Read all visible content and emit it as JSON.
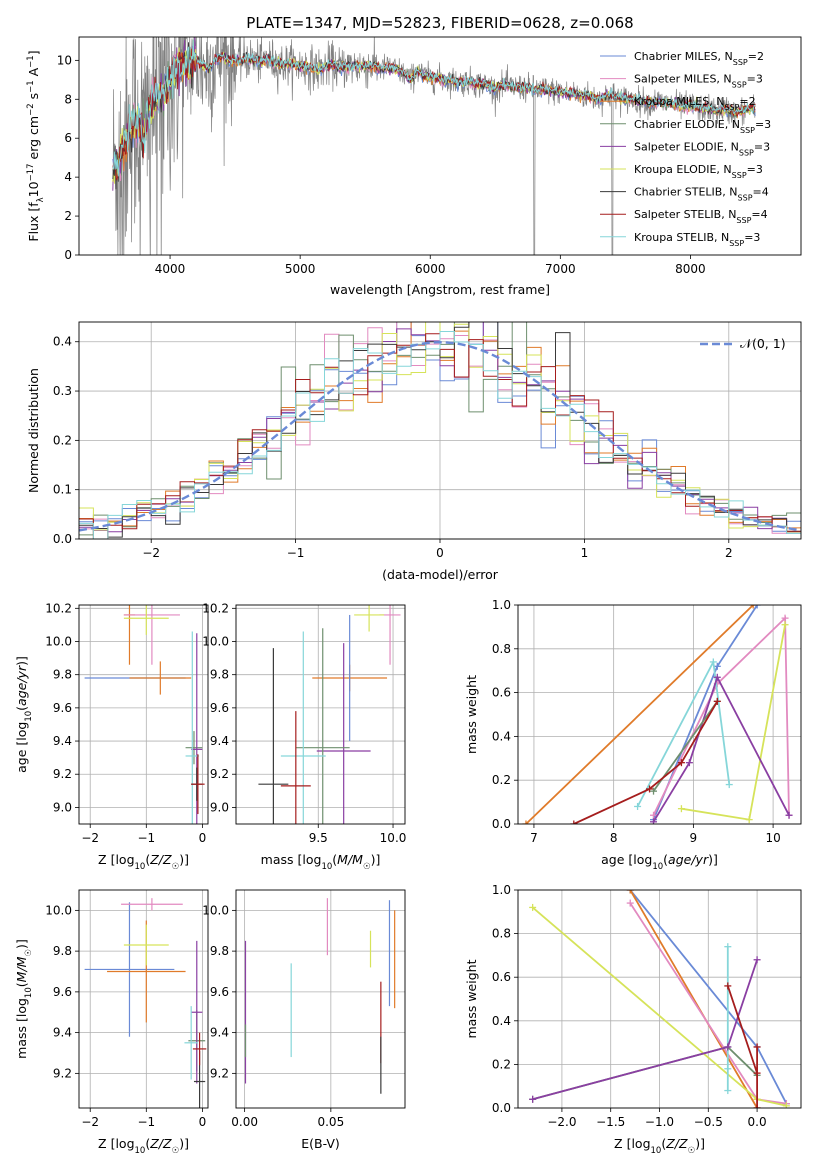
{
  "figure": {
    "title": "PLATE=1347, MJD=52823, FIBERID=0628, z=0.068"
  },
  "colors": {
    "c0": "#6a8ad6",
    "c1": "#e28ac0",
    "c2": "#e07b2a",
    "c3": "#6e8f6e",
    "c4": "#8a3fa2",
    "c5": "#d6e35a",
    "c6": "#3a3a3a",
    "c7": "#a51d1d",
    "c8": "#86d6d9",
    "data": "#808080",
    "grid": "#b0b0b0"
  },
  "chart_data": [
    {
      "id": "spectrum",
      "type": "line",
      "title": "PLATE=1347, MJD=52823, FIBERID=0628, z=0.068",
      "xlabel": "wavelength [Angstrom, rest frame]",
      "ylabel": "Flux [fλ10⁻¹⁷ erg cm⁻² s⁻¹ A⁻¹]",
      "xlim": [
        3300,
        8850
      ],
      "ylim": [
        0,
        11.2
      ],
      "xticks": [
        4000,
        5000,
        6000,
        7000,
        8000
      ],
      "yticks": [
        0,
        2,
        4,
        6,
        8,
        10
      ],
      "grid": false,
      "legend_placement": "right",
      "legend": [
        {
          "label": "Chabrier MILES, N",
          "sub": "SSP",
          "tail": "=2",
          "color": "c0"
        },
        {
          "label": "Salpeter MILES, N",
          "sub": "SSP",
          "tail": "=3",
          "color": "c1"
        },
        {
          "label": "Kroupa MILES, N",
          "sub": "SSP",
          "tail": "=2",
          "color": "c2"
        },
        {
          "label": "Chabrier ELODIE, N",
          "sub": "SSP",
          "tail": "=3",
          "color": "c3"
        },
        {
          "label": "Salpeter ELODIE, N",
          "sub": "SSP",
          "tail": "=3",
          "color": "c4"
        },
        {
          "label": "Kroupa ELODIE, N",
          "sub": "SSP",
          "tail": "=3",
          "color": "c5"
        },
        {
          "label": "Chabrier STELIB, N",
          "sub": "SSP",
          "tail": "=4",
          "color": "c6"
        },
        {
          "label": "Salpeter STELIB, N",
          "sub": "SSP",
          "tail": "=4",
          "color": "c7"
        },
        {
          "label": "Kroupa STELIB, N",
          "sub": "SSP",
          "tail": "=3",
          "color": "c8"
        }
      ],
      "x": [
        3560,
        3600,
        3650,
        3700,
        3750,
        3800,
        3850,
        3900,
        3950,
        4000,
        4050,
        4100,
        4150,
        4200,
        4250,
        4300,
        4350,
        4400,
        4450,
        4500,
        4550,
        4600,
        4650,
        4700,
        4750,
        4800,
        4850,
        4900,
        4950,
        5000,
        5050,
        5100,
        5150,
        5200,
        5250,
        5300,
        5350,
        5400,
        5450,
        5500,
        5550,
        5600,
        5650,
        5700,
        5750,
        5800,
        5850,
        5900,
        5950,
        6000,
        6050,
        6100,
        6150,
        6200,
        6250,
        6300,
        6350,
        6400,
        6450,
        6500,
        6550,
        6600,
        6650,
        6700,
        6750,
        6800,
        6850,
        6900,
        6950,
        7000,
        7050,
        7100,
        7150,
        7200,
        7250,
        7300,
        7350,
        7400,
        7450,
        7500,
        7550,
        7600,
        7650,
        7700,
        7750,
        7800,
        7850,
        7900,
        7950,
        8000,
        8050,
        8100,
        8150,
        8200,
        8250,
        8300,
        8350,
        8400,
        8450,
        8500
      ],
      "model": [
        4.3,
        4.6,
        5.8,
        6.6,
        6.9,
        6.2,
        7.6,
        8.0,
        8.4,
        9.0,
        9.6,
        9.8,
        9.9,
        10.0,
        9.7,
        9.6,
        10.1,
        10.2,
        10.0,
        10.0,
        10.0,
        10.1,
        10.0,
        9.9,
        10.1,
        9.9,
        9.8,
        9.8,
        9.8,
        9.7,
        9.7,
        9.6,
        9.5,
        9.7,
        9.8,
        9.6,
        9.7,
        9.7,
        9.7,
        9.7,
        9.7,
        9.6,
        9.6,
        9.6,
        9.5,
        9.3,
        9.0,
        9.5,
        9.2,
        9.1,
        9.1,
        9.0,
        9.0,
        8.9,
        8.9,
        8.9,
        8.8,
        8.8,
        8.7,
        8.5,
        8.7,
        8.7,
        8.6,
        8.6,
        8.6,
        8.5,
        8.5,
        8.5,
        8.4,
        8.4,
        8.3,
        8.3,
        8.2,
        8.2,
        8.1,
        8.0,
        8.2,
        8.2,
        8.1,
        8.0,
        8.0,
        7.9,
        7.9,
        7.8,
        7.9,
        7.8,
        7.8,
        7.7,
        7.6,
        7.7,
        7.6,
        7.5,
        7.5,
        7.4,
        7.5,
        7.4,
        7.3,
        7.4,
        7.5,
        7.5
      ],
      "data_note_ranges": {
        "noise_start": 3560,
        "noise_end": 8500
      }
    },
    {
      "id": "residuals",
      "type": "line",
      "xlabel": "(data-model)/error",
      "ylabel": "Normed distribution",
      "xlim": [
        -2.5,
        2.5
      ],
      "ylim": [
        0,
        0.44
      ],
      "xticks": [
        -2,
        -1,
        0,
        1,
        2
      ],
      "yticks": [
        0.0,
        0.1,
        0.2,
        0.3,
        0.4
      ],
      "grid": true,
      "legend_placement": "top-right",
      "legend_label": "𝒩(0, 1)",
      "gauss_color": "c0",
      "bin_width": 0.1
    },
    {
      "id": "age-vs-Z",
      "type": "scatter",
      "xlabel": "Z [log₁₀(Z/Z☉)]",
      "ylabel": "age  [log₁₀(age/yr)]",
      "xlim": [
        -2.2,
        0.1
      ],
      "ylim": [
        8.9,
        10.22
      ],
      "xticks": [
        -2,
        -1,
        0
      ],
      "yticks": [
        9.0,
        9.2,
        9.4,
        9.6,
        9.8,
        10.0,
        10.2
      ],
      "grid": true,
      "points": [
        {
          "color": "c0",
          "x": -1.2,
          "xerr": 0.9,
          "y": 9.78,
          "yerr": 0.0
        },
        {
          "color": "c2",
          "x": -0.75,
          "xerr": 0.55,
          "y": 9.78,
          "yerr": 0.1
        },
        {
          "color": "c2",
          "x": -1.3,
          "xerr": 0.1,
          "y": 10.16,
          "yerr": 0.3
        },
        {
          "color": "c1",
          "x": -0.9,
          "xerr": 0.5,
          "y": 10.16,
          "yerr": 0.3
        },
        {
          "color": "c5",
          "x": -1.0,
          "xerr": 0.4,
          "y": 10.14,
          "yerr": 0.1
        },
        {
          "color": "c3",
          "x": -0.15,
          "xerr": 0.15,
          "y": 9.36,
          "yerr": 0.1
        },
        {
          "color": "c4",
          "x": -0.1,
          "xerr": 0.1,
          "y": 9.35,
          "yerr": 0.7
        },
        {
          "color": "c8",
          "x": -0.18,
          "xerr": 0.12,
          "y": 9.31,
          "yerr": 0.75
        },
        {
          "color": "c6",
          "x": -0.1,
          "xerr": 0.1,
          "y": 9.14,
          "yerr": 0.1
        },
        {
          "color": "c7",
          "x": -0.08,
          "xerr": 0.12,
          "y": 9.14,
          "yerr": 0.18
        }
      ]
    },
    {
      "id": "age-vs-mass",
      "type": "scatter",
      "xlabel": "mass [log₁₀(M/M☉)]",
      "ylabel": "",
      "xlim": [
        8.95,
        10.08
      ],
      "ylim": [
        8.9,
        10.22
      ],
      "xticks": [
        9.5,
        10.0
      ],
      "yticks": [
        9.0,
        9.2,
        9.4,
        9.6,
        9.8,
        10.0,
        10.2
      ],
      "grid": true,
      "points": [
        {
          "color": "c1",
          "x": 9.98,
          "xerr": 0.07,
          "y": 10.16,
          "yerr": 0.3
        },
        {
          "color": "c5",
          "x": 9.84,
          "xerr": 0.1,
          "y": 10.16,
          "yerr": 0.1
        },
        {
          "color": "c2",
          "x": 9.71,
          "xerr": 0.25,
          "y": 9.78,
          "yerr": 0.08
        },
        {
          "color": "c0",
          "x": 9.71,
          "xerr": 0.0,
          "y": 9.78,
          "yerr": 0.38
        },
        {
          "color": "c4",
          "x": 9.67,
          "xerr": 0.18,
          "y": 9.34,
          "yerr": 0.65
        },
        {
          "color": "c3",
          "x": 9.53,
          "xerr": 0.18,
          "y": 9.36,
          "yerr": 0.72
        },
        {
          "color": "c8",
          "x": 9.4,
          "xerr": 0.15,
          "y": 9.31,
          "yerr": 0.75
        },
        {
          "color": "c6",
          "x": 9.2,
          "xerr": 0.1,
          "y": 9.14,
          "yerr": 0.82
        },
        {
          "color": "c7",
          "x": 9.35,
          "xerr": 0.1,
          "y": 9.13,
          "yerr": 0.45
        }
      ]
    },
    {
      "id": "weight-vs-age",
      "type": "line",
      "xlabel": "age  [log₁₀(age/yr)]",
      "ylabel": "mass weight",
      "xlim": [
        6.8,
        10.35
      ],
      "ylim": [
        0.0,
        1.0
      ],
      "xticks": [
        7,
        8,
        9,
        10
      ],
      "yticks": [
        0.0,
        0.2,
        0.4,
        0.6,
        0.8,
        1.0
      ],
      "grid": true,
      "series": [
        {
          "color": "c0",
          "x": [
            8.5,
            9.3,
            9.8
          ],
          "y": [
            0.02,
            0.72,
            1.0
          ]
        },
        {
          "color": "c2",
          "x": [
            6.9,
            9.75
          ],
          "y": [
            0.0,
            1.0
          ]
        },
        {
          "color": "c1",
          "x": [
            8.5,
            9.3,
            10.15,
            10.2
          ],
          "y": [
            0.04,
            0.64,
            0.94,
            0.04
          ]
        },
        {
          "color": "c5",
          "x": [
            8.85,
            9.7,
            10.15
          ],
          "y": [
            0.07,
            0.02,
            0.91
          ]
        },
        {
          "color": "c8",
          "x": [
            8.3,
            9.25,
            9.45
          ],
          "y": [
            0.08,
            0.74,
            0.18
          ]
        },
        {
          "color": "c4",
          "x": [
            8.5,
            8.95,
            9.3,
            10.2
          ],
          "y": [
            0.01,
            0.28,
            0.67,
            0.04
          ]
        },
        {
          "color": "c3",
          "x": [
            8.5,
            9.3
          ],
          "y": [
            0.15,
            0.56
          ]
        },
        {
          "color": "c7",
          "x": [
            7.5,
            8.45,
            8.85,
            9.3
          ],
          "y": [
            0.0,
            0.16,
            0.28,
            0.56
          ]
        }
      ]
    },
    {
      "id": "mass-vs-Z",
      "type": "scatter",
      "xlabel": "Z [log₁₀(Z/Z☉)]",
      "ylabel": "mass [log₁₀(M/M☉)]",
      "xlim": [
        -2.2,
        0.1
      ],
      "ylim": [
        9.03,
        10.1
      ],
      "xticks": [
        -2,
        -1,
        0
      ],
      "yticks": [
        9.2,
        9.4,
        9.6,
        9.8,
        10.0
      ],
      "grid": true,
      "points": [
        {
          "color": "c0",
          "x": -1.3,
          "xerr": 0.8,
          "y": 9.71,
          "yerr": 0.33
        },
        {
          "color": "c2",
          "x": -1.0,
          "xerr": 0.7,
          "y": 9.7,
          "yerr": 0.25
        },
        {
          "color": "c1",
          "x": -0.9,
          "xerr": 0.55,
          "y": 10.03,
          "yerr": 0.03
        },
        {
          "color": "c5",
          "x": -1.0,
          "xerr": 0.4,
          "y": 9.83,
          "yerr": 0.1
        },
        {
          "color": "c3",
          "x": -0.1,
          "xerr": 0.15,
          "y": 9.36,
          "yerr": 0.15
        },
        {
          "color": "c4",
          "x": -0.1,
          "xerr": 0.1,
          "y": 9.5,
          "yerr": 0.35
        },
        {
          "color": "c8",
          "x": -0.2,
          "xerr": 0.12,
          "y": 9.35,
          "yerr": 0.18
        },
        {
          "color": "c6",
          "x": -0.05,
          "xerr": 0.1,
          "y": 9.16,
          "yerr": 0.15
        },
        {
          "color": "c7",
          "x": -0.05,
          "xerr": 0.12,
          "y": 9.32,
          "yerr": 0.08
        }
      ]
    },
    {
      "id": "mass-vs-ebv",
      "type": "scatter",
      "xlabel": "E(B-V)",
      "ylabel": "",
      "xlim": [
        -0.005,
        0.093
      ],
      "ylim": [
        9.03,
        10.1
      ],
      "xticks": [
        0.0,
        0.05
      ],
      "xtick_labels": [
        "0.00",
        "0.05"
      ],
      "yticks": [
        9.2,
        9.4,
        9.6,
        9.8,
        10.0
      ],
      "grid": true,
      "points": [
        {
          "color": "c4",
          "x": 0.0005,
          "xerr": 0.0,
          "y": 9.5,
          "yerr": 0.35
        },
        {
          "color": "c3",
          "x": 0.0005,
          "xerr": 0.0,
          "y": 9.36,
          "yerr": 0.08
        },
        {
          "color": "c8",
          "x": 0.027,
          "xerr": 0.0,
          "y": 9.51,
          "yerr": 0.23
        },
        {
          "color": "c1",
          "x": 0.048,
          "xerr": 0.0,
          "y": 9.92,
          "yerr": 0.14
        },
        {
          "color": "c5",
          "x": 0.073,
          "xerr": 0.0,
          "y": 9.81,
          "yerr": 0.09
        },
        {
          "color": "c7",
          "x": 0.079,
          "xerr": 0.0,
          "y": 9.45,
          "yerr": 0.2
        },
        {
          "color": "c6",
          "x": 0.079,
          "xerr": 0.0,
          "y": 9.24,
          "yerr": 0.14
        },
        {
          "color": "c0",
          "x": 0.084,
          "xerr": 0.0,
          "y": 9.79,
          "yerr": 0.26
        },
        {
          "color": "c2",
          "x": 0.087,
          "xerr": 0.0,
          "y": 9.76,
          "yerr": 0.24
        }
      ]
    },
    {
      "id": "weight-vs-Z",
      "type": "line",
      "xlabel": "Z [log₁₀(Z/Z☉)]",
      "ylabel": "mass weight",
      "xlim": [
        -2.45,
        0.45
      ],
      "ylim": [
        0.0,
        1.0
      ],
      "xticks": [
        -2.0,
        -1.5,
        -1.0,
        -0.5,
        0.0
      ],
      "xtick_labels": [
        "−2.0",
        "−1.5",
        "−1.0",
        "−0.5",
        "0.0"
      ],
      "yticks": [
        0.0,
        0.2,
        0.4,
        0.6,
        0.8,
        1.0
      ],
      "grid": true,
      "series": [
        {
          "color": "c0",
          "x": [
            -1.3,
            0.0,
            0.3
          ],
          "y": [
            1.0,
            0.28,
            0.02
          ]
        },
        {
          "color": "c2",
          "x": [
            -1.3,
            0.0
          ],
          "y": [
            1.0,
            0.0
          ]
        },
        {
          "color": "c1",
          "x": [
            -1.3,
            0.0,
            0.3
          ],
          "y": [
            0.94,
            0.04,
            0.02
          ]
        },
        {
          "color": "c5",
          "x": [
            -2.3,
            0.0,
            0.3
          ],
          "y": [
            0.92,
            0.04,
            0.01
          ]
        },
        {
          "color": "c8",
          "x": [
            -0.3,
            -0.3,
            -0.3
          ],
          "y": [
            0.74,
            0.18,
            0.08
          ]
        },
        {
          "color": "c3",
          "x": [
            -2.3,
            -0.3,
            0.0
          ],
          "y": [
            0.04,
            0.28,
            0.15
          ]
        },
        {
          "color": "c4",
          "x": [
            -2.3,
            -0.3,
            0.0
          ],
          "y": [
            0.04,
            0.28,
            0.68
          ]
        },
        {
          "color": "c7",
          "x": [
            -0.3,
            0.0,
            0.0,
            0.0
          ],
          "y": [
            0.56,
            0.16,
            0.28,
            0.0
          ]
        }
      ]
    }
  ]
}
